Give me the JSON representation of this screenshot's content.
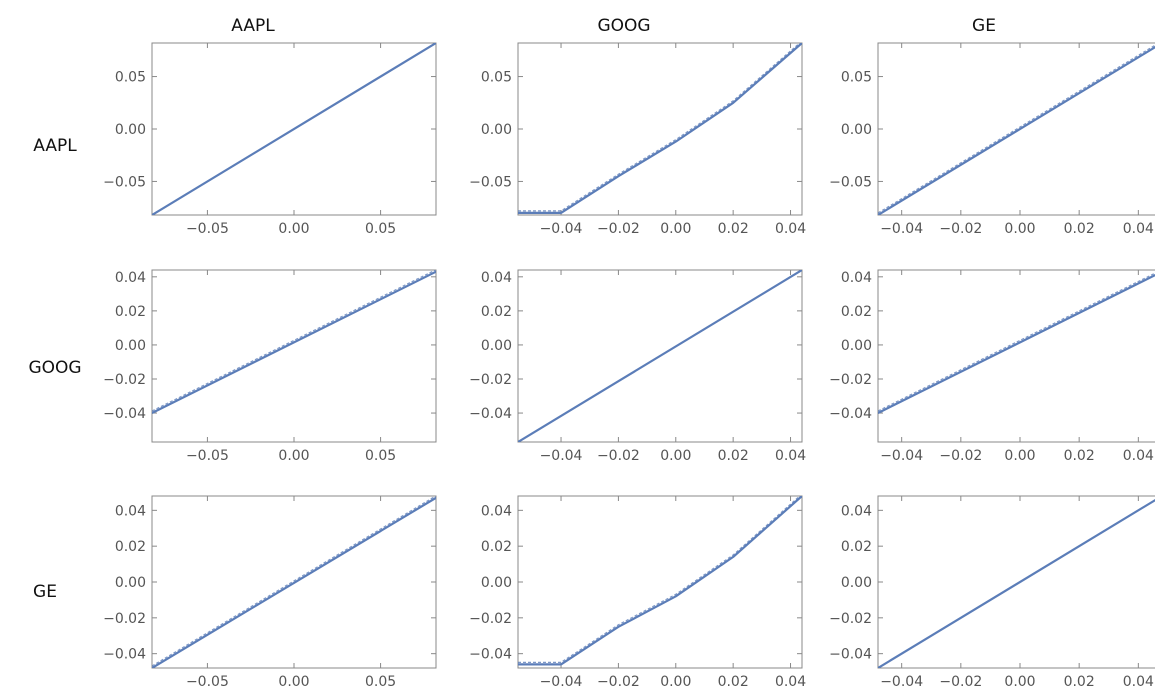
{
  "column_labels": [
    "AAPL",
    "GOOG",
    "GE"
  ],
  "row_labels": [
    "AAPL",
    "GOOG",
    "GE"
  ],
  "colors": {
    "series": "#5b7db8",
    "frame": "#888888",
    "tick_text": "#555555"
  },
  "chart_data": [
    {
      "type": "line",
      "row": "AAPL",
      "column": "AAPL",
      "xlim": [
        -0.082,
        0.082
      ],
      "ylim": [
        -0.082,
        0.082
      ],
      "xticks": [
        "−0.05",
        "0.00",
        "0.05"
      ],
      "xtick_values": [
        -0.05,
        0,
        0.05
      ],
      "yticks": [
        "0.05",
        "0.00",
        "−0.05"
      ],
      "ytick_values": [
        0.05,
        0,
        -0.05
      ],
      "series": [
        {
          "x": [
            -0.082,
            0.082
          ],
          "y": [
            -0.082,
            0.082
          ]
        }
      ]
    },
    {
      "type": "line",
      "row": "AAPL",
      "column": "GOOG",
      "xlim": [
        -0.055,
        0.044
      ],
      "ylim": [
        -0.082,
        0.082
      ],
      "xticks": [
        "−0.04",
        "−0.02",
        "0.00",
        "0.02",
        "0.04"
      ],
      "xtick_values": [
        -0.04,
        -0.02,
        0,
        0.02,
        0.04
      ],
      "yticks": [
        "0.05",
        "0.00",
        "−0.05"
      ],
      "ytick_values": [
        0.05,
        0,
        -0.05
      ],
      "series": [
        {
          "x": [
            -0.055,
            -0.04,
            -0.02,
            0.0,
            0.02,
            0.044
          ],
          "y": [
            -0.08,
            -0.08,
            -0.045,
            -0.012,
            0.025,
            0.082
          ]
        }
      ]
    },
    {
      "type": "line",
      "row": "AAPL",
      "column": "GE",
      "xlim": [
        -0.048,
        0.048
      ],
      "ylim": [
        -0.082,
        0.082
      ],
      "xticks": [
        "−0.04",
        "−0.02",
        "0.00",
        "0.02",
        "0.04"
      ],
      "xtick_values": [
        -0.04,
        -0.02,
        0,
        0.02,
        0.04
      ],
      "yticks": [
        "0.05",
        "0.00",
        "−0.05"
      ],
      "ytick_values": [
        0.05,
        0,
        -0.05
      ],
      "series": [
        {
          "x": [
            -0.048,
            0.048
          ],
          "y": [
            -0.082,
            0.082
          ]
        }
      ]
    },
    {
      "type": "line",
      "row": "GOOG",
      "column": "AAPL",
      "xlim": [
        -0.082,
        0.082
      ],
      "ylim": [
        -0.057,
        0.044
      ],
      "xticks": [
        "−0.05",
        "0.00",
        "0.05"
      ],
      "xtick_values": [
        -0.05,
        0,
        0.05
      ],
      "yticks": [
        "0.04",
        "0.02",
        "0.00",
        "−0.02",
        "−0.04"
      ],
      "ytick_values": [
        0.04,
        0.02,
        0,
        -0.02,
        -0.04
      ],
      "series": [
        {
          "x": [
            -0.082,
            0.082
          ],
          "y": [
            -0.04,
            0.043
          ]
        }
      ]
    },
    {
      "type": "line",
      "row": "GOOG",
      "column": "GOOG",
      "xlim": [
        -0.055,
        0.044
      ],
      "ylim": [
        -0.057,
        0.044
      ],
      "xticks": [
        "−0.04",
        "−0.02",
        "0.00",
        "0.02",
        "0.04"
      ],
      "xtick_values": [
        -0.04,
        -0.02,
        0,
        0.02,
        0.04
      ],
      "yticks": [
        "0.04",
        "0.02",
        "0.00",
        "−0.02",
        "−0.04"
      ],
      "ytick_values": [
        0.04,
        0.02,
        0,
        -0.02,
        -0.04
      ],
      "series": [
        {
          "x": [
            -0.055,
            0.044
          ],
          "y": [
            -0.057,
            0.044
          ]
        }
      ]
    },
    {
      "type": "line",
      "row": "GOOG",
      "column": "GE",
      "xlim": [
        -0.048,
        0.048
      ],
      "ylim": [
        -0.057,
        0.044
      ],
      "xticks": [
        "−0.04",
        "−0.02",
        "0.00",
        "0.02",
        "0.04"
      ],
      "xtick_values": [
        -0.04,
        -0.02,
        0,
        0.02,
        0.04
      ],
      "yticks": [
        "0.04",
        "0.02",
        "0.00",
        "−0.02",
        "−0.04"
      ],
      "ytick_values": [
        0.04,
        0.02,
        0,
        -0.02,
        -0.04
      ],
      "series": [
        {
          "x": [
            -0.048,
            0.048
          ],
          "y": [
            -0.04,
            0.043
          ]
        }
      ]
    },
    {
      "type": "line",
      "row": "GE",
      "column": "AAPL",
      "xlim": [
        -0.082,
        0.082
      ],
      "ylim": [
        -0.048,
        0.048
      ],
      "xticks": [
        "−0.05",
        "0.00",
        "0.05"
      ],
      "xtick_values": [
        -0.05,
        0,
        0.05
      ],
      "yticks": [
        "0.04",
        "0.02",
        "0.00",
        "−0.02",
        "−0.04"
      ],
      "ytick_values": [
        0.04,
        0.02,
        0,
        -0.02,
        -0.04
      ],
      "series": [
        {
          "x": [
            -0.082,
            0.082
          ],
          "y": [
            -0.048,
            0.047
          ]
        }
      ]
    },
    {
      "type": "line",
      "row": "GE",
      "column": "GOOG",
      "xlim": [
        -0.055,
        0.044
      ],
      "ylim": [
        -0.048,
        0.048
      ],
      "xticks": [
        "−0.04",
        "−0.02",
        "0.00",
        "0.02",
        "0.04"
      ],
      "xtick_values": [
        -0.04,
        -0.02,
        0,
        0.02,
        0.04
      ],
      "yticks": [
        "0.04",
        "0.02",
        "0.00",
        "−0.02",
        "−0.04"
      ],
      "ytick_values": [
        0.04,
        0.02,
        0,
        -0.02,
        -0.04
      ],
      "series": [
        {
          "x": [
            -0.055,
            -0.04,
            -0.02,
            0.0,
            0.02,
            0.044
          ],
          "y": [
            -0.046,
            -0.046,
            -0.025,
            -0.008,
            0.014,
            0.048
          ]
        }
      ]
    },
    {
      "type": "line",
      "row": "GE",
      "column": "GE",
      "xlim": [
        -0.048,
        0.048
      ],
      "ylim": [
        -0.048,
        0.048
      ],
      "xticks": [
        "−0.04",
        "−0.02",
        "0.00",
        "0.02",
        "0.04"
      ],
      "xtick_values": [
        -0.04,
        -0.02,
        0,
        0.02,
        0.04
      ],
      "yticks": [
        "0.04",
        "0.02",
        "0.00",
        "−0.02",
        "−0.04"
      ],
      "ytick_values": [
        0.04,
        0.02,
        0,
        -0.02,
        -0.04
      ],
      "series": [
        {
          "x": [
            -0.048,
            0.048
          ],
          "y": [
            -0.048,
            0.048
          ]
        }
      ]
    }
  ]
}
